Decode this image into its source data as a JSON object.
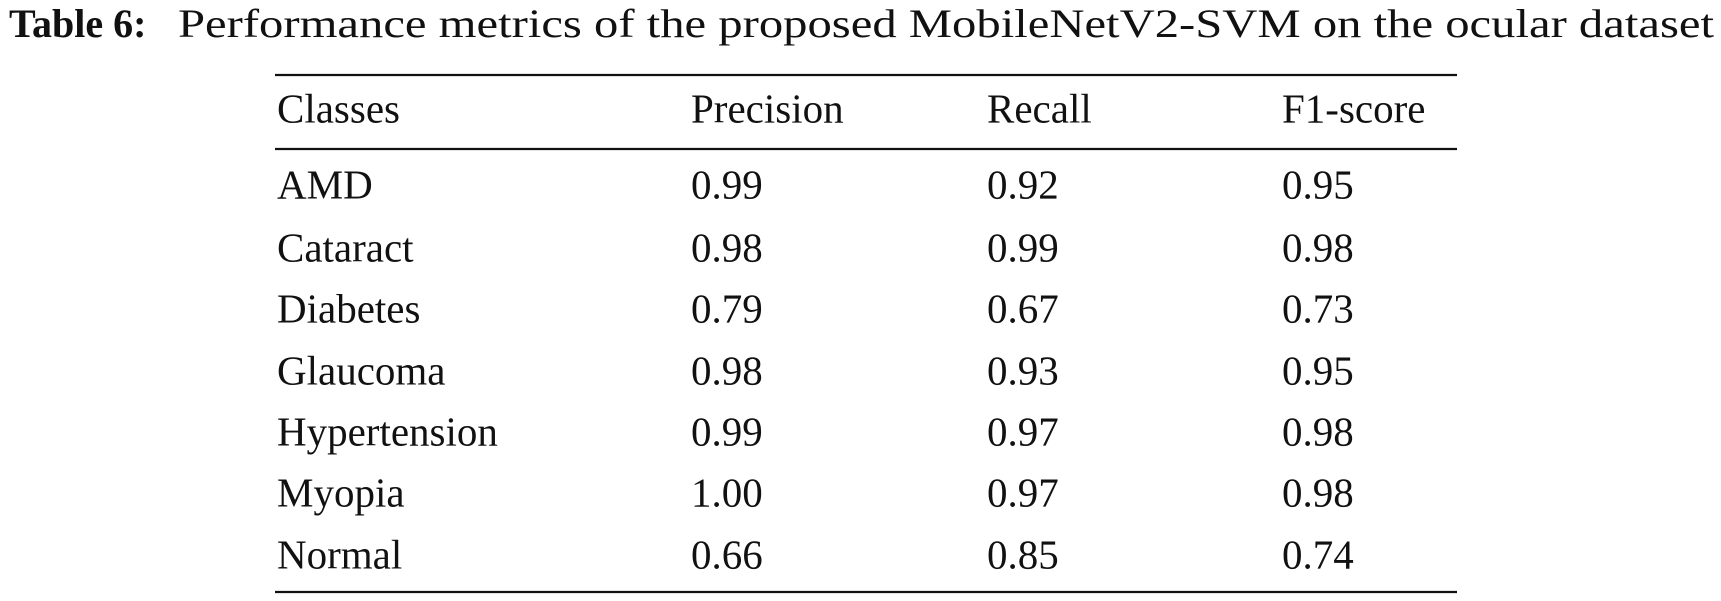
{
  "caption": {
    "label": "Table 6:",
    "text": "Performance metrics of the proposed MobileNetV2-SVM on the ocular dataset"
  },
  "table": {
    "header": [
      "Classes",
      "Precision",
      "Recall",
      "F1-score"
    ],
    "rows": [
      [
        "AMD",
        "0.99",
        "0.92",
        "0.95"
      ],
      [
        "Cataract",
        "0.98",
        "0.99",
        "0.98"
      ],
      [
        "Diabetes",
        "0.79",
        "0.67",
        "0.73"
      ],
      [
        "Glaucoma",
        "0.98",
        "0.93",
        "0.95"
      ],
      [
        "Hypertension",
        "0.99",
        "0.97",
        "0.98"
      ],
      [
        "Myopia",
        "1.00",
        "0.97",
        "0.98"
      ],
      [
        "Normal",
        "0.66",
        "0.85",
        "0.74"
      ]
    ]
  }
}
